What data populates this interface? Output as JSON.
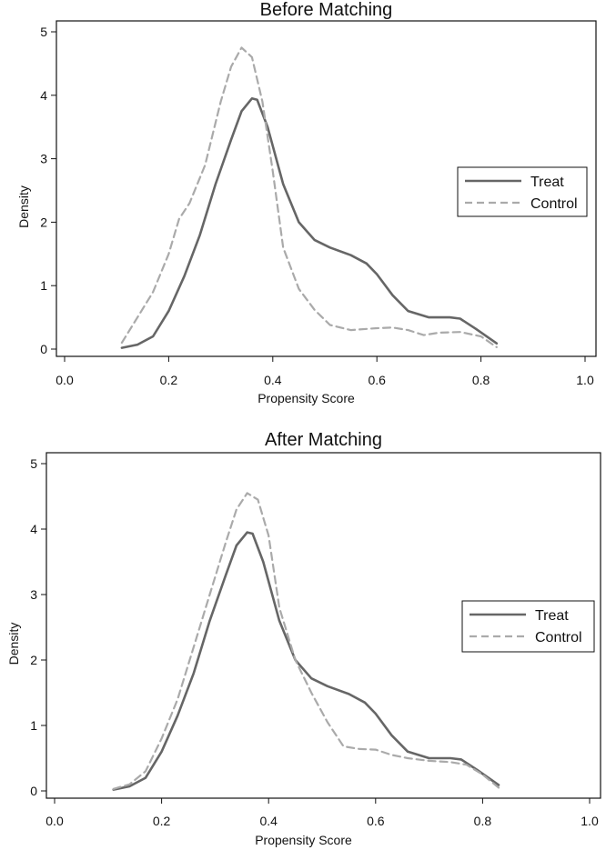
{
  "chart_data": [
    {
      "type": "line",
      "title": "Before Matching",
      "xlabel": "Propensity Score",
      "ylabel": "Density",
      "xlim": [
        0.0,
        1.0
      ],
      "ylim": [
        0,
        5
      ],
      "xticks": [
        "0.0",
        "0.2",
        "0.4",
        "0.6",
        "0.8",
        "1.0"
      ],
      "yticks": [
        "0",
        "1",
        "2",
        "3",
        "4",
        "5"
      ],
      "grid": false,
      "legend": "right",
      "series": [
        {
          "name": "Treat",
          "style": "solid",
          "color": "#666666",
          "x": [
            0.11,
            0.14,
            0.17,
            0.2,
            0.23,
            0.26,
            0.29,
            0.32,
            0.34,
            0.36,
            0.37,
            0.39,
            0.42,
            0.45,
            0.48,
            0.51,
            0.55,
            0.58,
            0.6,
            0.63,
            0.66,
            0.7,
            0.74,
            0.76,
            0.79,
            0.83
          ],
          "y": [
            0.02,
            0.07,
            0.2,
            0.6,
            1.15,
            1.8,
            2.6,
            3.3,
            3.75,
            3.95,
            3.93,
            3.5,
            2.6,
            2.0,
            1.72,
            1.6,
            1.48,
            1.35,
            1.18,
            0.85,
            0.6,
            0.5,
            0.5,
            0.48,
            0.32,
            0.09
          ]
        },
        {
          "name": "Control",
          "style": "dashed",
          "color": "#aaaaaa",
          "x": [
            0.11,
            0.14,
            0.17,
            0.2,
            0.22,
            0.24,
            0.27,
            0.3,
            0.32,
            0.34,
            0.36,
            0.38,
            0.4,
            0.42,
            0.45,
            0.48,
            0.51,
            0.55,
            0.6,
            0.63,
            0.66,
            0.69,
            0.72,
            0.76,
            0.8,
            0.83
          ],
          "y": [
            0.1,
            0.5,
            0.9,
            1.5,
            2.05,
            2.3,
            2.9,
            3.9,
            4.45,
            4.75,
            4.6,
            3.9,
            2.8,
            1.6,
            0.95,
            0.62,
            0.38,
            0.3,
            0.33,
            0.34,
            0.3,
            0.22,
            0.26,
            0.27,
            0.2,
            0.03
          ]
        }
      ]
    },
    {
      "type": "line",
      "title": "After Matching",
      "xlabel": "Propensity Score",
      "ylabel": "Density",
      "xlim": [
        0.0,
        1.0
      ],
      "ylim": [
        0,
        5
      ],
      "xticks": [
        "0.0",
        "0.2",
        "0.4",
        "0.6",
        "0.8",
        "1.0"
      ],
      "yticks": [
        "0",
        "1",
        "2",
        "3",
        "4",
        "5"
      ],
      "grid": false,
      "legend": "right",
      "series": [
        {
          "name": "Treat",
          "style": "solid",
          "color": "#666666",
          "x": [
            0.11,
            0.14,
            0.17,
            0.2,
            0.23,
            0.26,
            0.29,
            0.32,
            0.34,
            0.36,
            0.37,
            0.39,
            0.42,
            0.45,
            0.48,
            0.51,
            0.55,
            0.58,
            0.6,
            0.63,
            0.66,
            0.7,
            0.74,
            0.76,
            0.79,
            0.83
          ],
          "y": [
            0.02,
            0.07,
            0.2,
            0.6,
            1.15,
            1.8,
            2.6,
            3.3,
            3.75,
            3.95,
            3.93,
            3.5,
            2.6,
            2.0,
            1.72,
            1.6,
            1.48,
            1.35,
            1.18,
            0.85,
            0.6,
            0.5,
            0.5,
            0.48,
            0.32,
            0.09
          ]
        },
        {
          "name": "Control",
          "style": "dashed",
          "color": "#aaaaaa",
          "x": [
            0.11,
            0.14,
            0.17,
            0.2,
            0.23,
            0.26,
            0.29,
            0.32,
            0.34,
            0.36,
            0.38,
            0.4,
            0.42,
            0.45,
            0.48,
            0.51,
            0.54,
            0.57,
            0.6,
            0.63,
            0.66,
            0.7,
            0.74,
            0.77,
            0.8,
            0.83
          ],
          "y": [
            0.03,
            0.1,
            0.3,
            0.8,
            1.4,
            2.2,
            3.0,
            3.8,
            4.3,
            4.55,
            4.45,
            3.9,
            2.8,
            2.0,
            1.5,
            1.05,
            0.68,
            0.64,
            0.63,
            0.55,
            0.5,
            0.46,
            0.44,
            0.4,
            0.25,
            0.05
          ]
        }
      ]
    }
  ]
}
